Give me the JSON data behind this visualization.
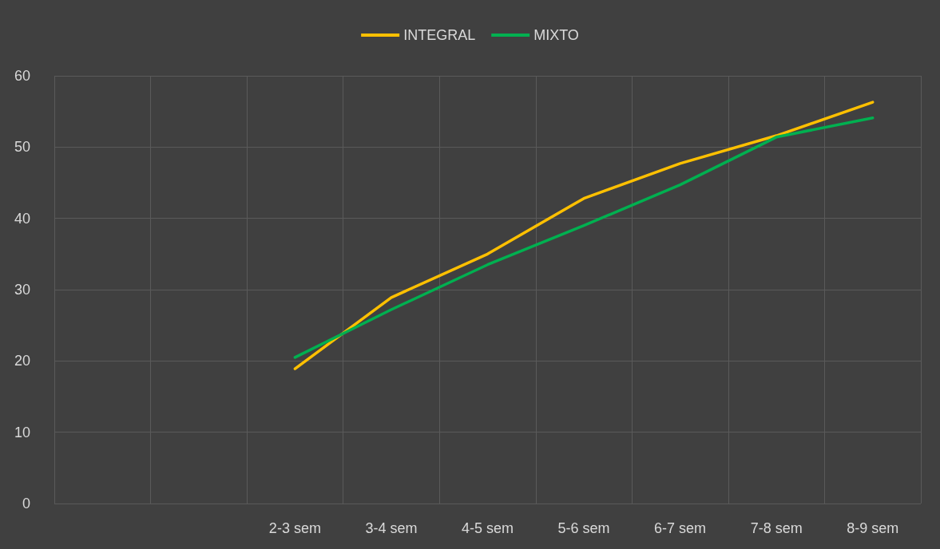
{
  "chart_data": {
    "type": "line",
    "categories": [
      null,
      null,
      "2-3 sem",
      "3-4 sem",
      "4-5 sem",
      "5-6 sem",
      "6-7 sem",
      "7-8 sem",
      "8-9 sem"
    ],
    "series": [
      {
        "name": "INTEGRAL",
        "color": "#ffc000",
        "values": [
          null,
          null,
          18.9,
          28.9,
          35.0,
          42.8,
          47.7,
          51.6,
          56.3
        ]
      },
      {
        "name": "MIXTO",
        "color": "#00b050",
        "values": [
          null,
          null,
          20.5,
          27.2,
          33.5,
          39.0,
          44.7,
          51.4,
          54.1
        ]
      }
    ],
    "ylim": [
      0,
      60
    ],
    "yticks": [
      0,
      10,
      20,
      30,
      40,
      50,
      60
    ],
    "grid": true,
    "legend": "top",
    "marker": "none",
    "line_style": "solid"
  }
}
